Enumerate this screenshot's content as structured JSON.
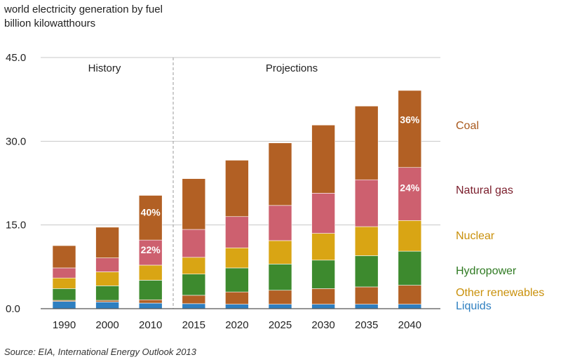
{
  "title_line1": "world electricity generation by fuel",
  "title_line2": "billion kilowatthours",
  "source": "Source: EIA, International Energy Outlook 2013",
  "periods": {
    "history": "History",
    "projections": "Projections"
  },
  "chart_data": {
    "type": "bar",
    "stacked": true,
    "categories": [
      "1990",
      "2000",
      "2010",
      "2015",
      "2020",
      "2025",
      "2030",
      "2035",
      "2040"
    ],
    "ylim": [
      0,
      45
    ],
    "yticks": [
      "0.0",
      "15.0",
      "30.0",
      "45.0"
    ],
    "ytick_values": [
      0,
      15,
      30,
      45
    ],
    "grid": true,
    "legend": "right",
    "series": [
      {
        "name": "Liquids",
        "color": "#2e7fc0",
        "values": [
          1.3,
          1.2,
          1.0,
          0.9,
          0.8,
          0.8,
          0.8,
          0.8,
          0.8
        ]
      },
      {
        "name": "Other renewables",
        "color": "#b26024",
        "values": [
          0.2,
          0.3,
          0.6,
          1.5,
          2.2,
          2.5,
          2.8,
          3.1,
          3.4
        ]
      },
      {
        "name": "Hydropower",
        "color": "#3d8a2e",
        "values": [
          2.1,
          2.6,
          3.5,
          3.8,
          4.3,
          4.7,
          5.1,
          5.6,
          6.1
        ]
      },
      {
        "name": "Nuclear",
        "color": "#d9a514",
        "values": [
          1.9,
          2.5,
          2.7,
          3.0,
          3.6,
          4.2,
          4.8,
          5.2,
          5.5
        ]
      },
      {
        "name": "Natural gas",
        "color": "#cd606f",
        "values": [
          1.8,
          2.5,
          4.5,
          5.0,
          5.6,
          6.3,
          7.2,
          8.4,
          9.5
        ]
      },
      {
        "name": "Coal",
        "color": "#b26024",
        "values": [
          4.0,
          5.5,
          8.0,
          9.1,
          10.1,
          11.2,
          12.2,
          13.2,
          13.8
        ]
      }
    ],
    "annotations": [
      {
        "category": "2010",
        "series": "Coal",
        "text": "40%"
      },
      {
        "category": "2010",
        "series": "Natural gas",
        "text": "22%"
      },
      {
        "category": "2040",
        "series": "Coal",
        "text": "36%"
      },
      {
        "category": "2040",
        "series": "Natural gas",
        "text": "24%"
      }
    ]
  },
  "legend_items": [
    {
      "label": "Coal",
      "color": "#a8581c"
    },
    {
      "label": "Natural gas",
      "color": "#7a1d2b"
    },
    {
      "label": "Nuclear",
      "color": "#c9900a"
    },
    {
      "label": "Hydropower",
      "color": "#2f7a22"
    },
    {
      "label": "Other renewables",
      "color": "#c9900a"
    },
    {
      "label": "Liquids",
      "color": "#2e7fc0"
    }
  ]
}
